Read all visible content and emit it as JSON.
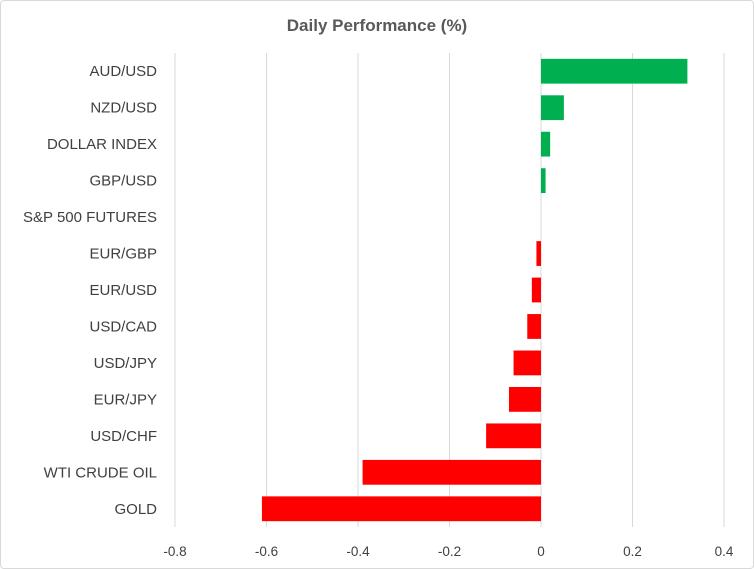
{
  "chart_data": {
    "type": "bar",
    "orientation": "horizontal",
    "title": "Daily Performance (%)",
    "xlabel": "",
    "ylabel": "",
    "categories": [
      "AUD/USD",
      "NZD/USD",
      "DOLLAR INDEX",
      "GBP/USD",
      "S&P 500 FUTURES",
      "EUR/GBP",
      "EUR/USD",
      "USD/CAD",
      "USD/JPY",
      "EUR/JPY",
      "USD/CHF",
      "WTI CRUDE OIL",
      "GOLD"
    ],
    "values": [
      0.32,
      0.05,
      0.02,
      0.01,
      0.0,
      -0.01,
      -0.02,
      -0.03,
      -0.06,
      -0.07,
      -0.12,
      -0.39,
      -0.61
    ],
    "xlim": [
      -0.8,
      0.4
    ],
    "xticks": [
      -0.8,
      -0.6,
      -0.4,
      -0.2,
      0,
      0.2,
      0.4
    ],
    "xtick_labels": [
      "-0.8",
      "-0.6",
      "-0.4",
      "-0.2",
      "0",
      "0.2",
      "0.4"
    ],
    "grid": "vertical",
    "legend": "none",
    "colors": {
      "positive": "#00b050",
      "negative": "#ff0000",
      "grid": "#d9d9d9",
      "text": "#404040",
      "title": "#595959"
    }
  }
}
